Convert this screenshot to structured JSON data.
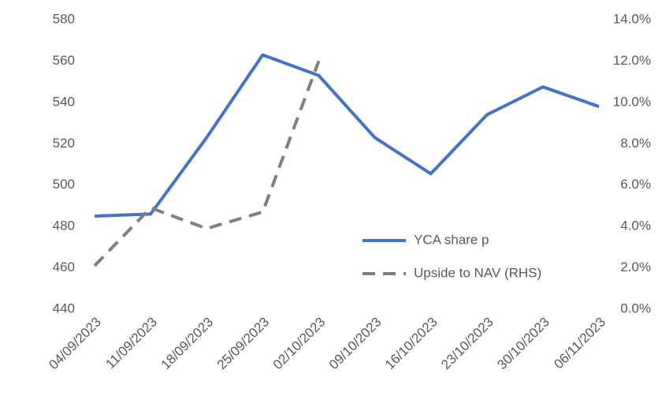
{
  "chart_data": {
    "type": "line",
    "categories": [
      "04/09/2023",
      "11/09/2023",
      "18/09/2023",
      "25/09/2023",
      "02/10/2023",
      "09/10/2023",
      "16/10/2023",
      "23/10/2023",
      "30/10/2023",
      "06/11/2023"
    ],
    "series": [
      {
        "name": "YCA share p",
        "color": "#4472c4",
        "dash": false,
        "values": [
          485,
          486,
          523,
          563,
          553,
          523,
          505.5,
          534,
          547.5,
          538
        ]
      },
      {
        "name": "Upside to NAV (RHS)",
        "color": "#7f7f7f",
        "dash": true,
        "axis": "y2",
        "values": [
          2.1,
          4.9,
          3.9,
          4.7,
          12.0,
          null,
          null,
          null,
          null,
          null
        ]
      }
    ],
    "ylim": [
      440,
      580
    ],
    "yticks": [
      440,
      460,
      480,
      500,
      520,
      540,
      560,
      580
    ],
    "y2lim": [
      0,
      14
    ],
    "y2ticks": [
      {
        "value": 0,
        "label": "0.0%"
      },
      {
        "value": 2,
        "label": "2.0%"
      },
      {
        "value": 4,
        "label": "4.0%"
      },
      {
        "value": 6,
        "label": "6.0%"
      },
      {
        "value": 8,
        "label": "8.0%"
      },
      {
        "value": 10,
        "label": "10.0%"
      },
      {
        "value": 12,
        "label": "12.0%"
      },
      {
        "value": 14,
        "label": "14.0%"
      }
    ],
    "grid": false
  }
}
